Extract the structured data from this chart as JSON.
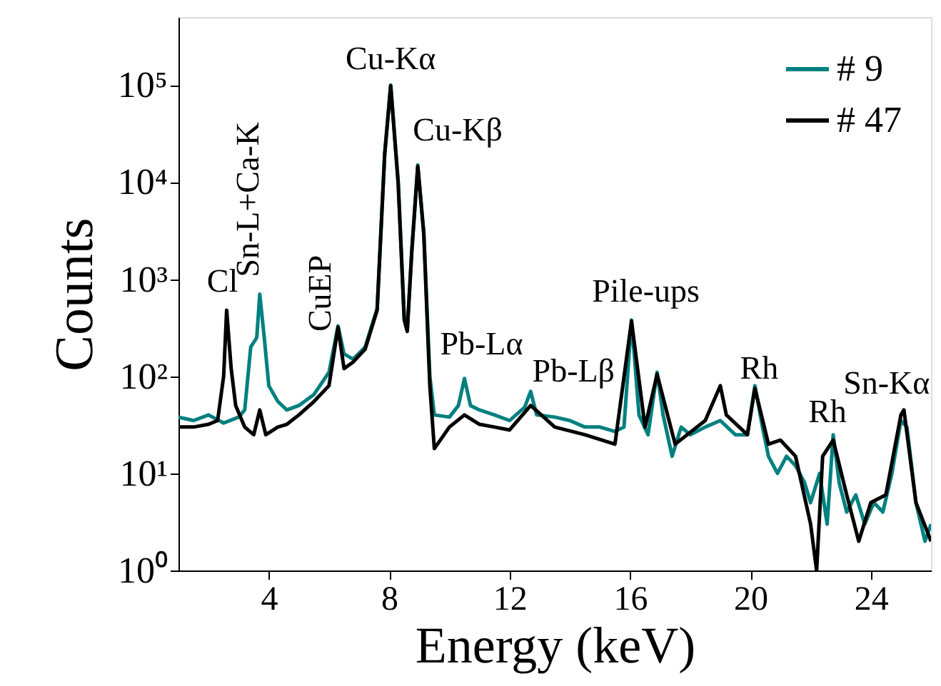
{
  "chart_data": {
    "type": "line",
    "xlabel": "Energy (keV)",
    "ylabel": "Counts",
    "log": "y",
    "grid": false,
    "legend": "top right",
    "line_style": "solid",
    "marker": "none",
    "xlim": [
      1,
      26
    ],
    "xticks": [
      4,
      8,
      12,
      16,
      20,
      24
    ],
    "ylim": [
      1,
      500000
    ],
    "yticks": [
      {
        "value": 1,
        "label": "10⁰"
      },
      {
        "value": 10,
        "label": "10¹"
      },
      {
        "value": 100,
        "label": "10²"
      },
      {
        "value": 1000,
        "label": "10³"
      },
      {
        "value": 10000,
        "label": "10⁴"
      },
      {
        "value": 100000,
        "label": "10⁵"
      }
    ],
    "series": [
      {
        "name": "# 9",
        "color": "#008080",
        "x": [
          1.0,
          1.5,
          2.0,
          2.5,
          3.0,
          3.2,
          3.4,
          3.6,
          3.7,
          3.85,
          4.0,
          4.3,
          4.6,
          5.0,
          5.5,
          6.0,
          6.3,
          6.5,
          6.8,
          7.2,
          7.6,
          7.85,
          8.05,
          8.3,
          8.5,
          8.6,
          8.75,
          8.95,
          9.15,
          9.35,
          9.5,
          10.0,
          10.3,
          10.5,
          10.7,
          11.0,
          11.5,
          12.0,
          12.5,
          12.7,
          12.9,
          13.5,
          14.0,
          14.5,
          15.0,
          15.5,
          15.8,
          16.05,
          16.3,
          16.6,
          16.9,
          17.1,
          17.4,
          17.7,
          18.0,
          18.5,
          19.0,
          19.5,
          19.9,
          20.15,
          20.4,
          20.6,
          20.9,
          21.2,
          21.5,
          21.8,
          22.0,
          22.3,
          22.55,
          22.75,
          22.95,
          23.2,
          23.5,
          23.8,
          24.1,
          24.4,
          24.7,
          25.0,
          25.2,
          25.5,
          25.8,
          26.0
        ],
        "values": [
          38,
          35,
          40,
          33,
          38,
          45,
          200,
          250,
          700,
          250,
          80,
          55,
          45,
          50,
          65,
          110,
          330,
          170,
          150,
          200,
          500,
          20000,
          100000,
          10000,
          400,
          300,
          2000,
          15000,
          3000,
          100,
          40,
          38,
          50,
          95,
          50,
          45,
          40,
          35,
          48,
          70,
          40,
          38,
          35,
          30,
          30,
          27,
          30,
          380,
          40,
          25,
          110,
          40,
          15,
          30,
          25,
          30,
          35,
          25,
          25,
          80,
          30,
          15,
          10,
          15,
          12,
          8,
          5,
          10,
          3,
          25,
          8,
          4,
          6,
          3,
          5,
          4,
          10,
          35,
          30,
          5,
          2,
          3
        ]
      },
      {
        "name": "# 47",
        "color": "#000000",
        "x": [
          1.0,
          1.5,
          2.0,
          2.3,
          2.5,
          2.6,
          2.75,
          2.9,
          3.2,
          3.5,
          3.7,
          3.9,
          4.3,
          4.6,
          5.0,
          5.5,
          6.0,
          6.3,
          6.5,
          6.8,
          7.2,
          7.6,
          7.85,
          8.05,
          8.3,
          8.5,
          8.6,
          8.75,
          8.95,
          9.15,
          9.35,
          9.5,
          10.0,
          10.5,
          11.0,
          11.5,
          12.0,
          12.7,
          13.5,
          14.5,
          15.5,
          16.05,
          16.5,
          16.9,
          17.5,
          18.5,
          19.0,
          19.2,
          19.9,
          20.15,
          20.6,
          21.0,
          21.5,
          22.0,
          22.2,
          22.4,
          22.75,
          23.2,
          23.6,
          24.0,
          24.5,
          25.0,
          25.1,
          25.5,
          26.0
        ],
        "values": [
          30,
          30,
          32,
          35,
          100,
          480,
          120,
          50,
          30,
          25,
          45,
          25,
          30,
          32,
          40,
          55,
          80,
          320,
          120,
          140,
          190,
          480,
          19000,
          98000,
          9500,
          380,
          290,
          1900,
          14500,
          2900,
          80,
          18,
          30,
          40,
          32,
          30,
          28,
          50,
          30,
          25,
          20,
          370,
          30,
          105,
          20,
          35,
          80,
          40,
          25,
          75,
          20,
          22,
          15,
          3,
          1,
          15,
          22,
          6,
          2,
          5,
          6,
          40,
          45,
          5,
          2
        ]
      }
    ],
    "annotations": [
      {
        "text": "Cl",
        "x": 2.6,
        "y": 480
      },
      {
        "text": "Sn-L+Ca-K",
        "x": 3.7,
        "y": 700
      },
      {
        "text": "CuEP",
        "x": 6.3,
        "y": 330
      },
      {
        "text": "Cu-Kα",
        "x": 8.05,
        "y": 100000
      },
      {
        "text": "Cu-Kβ",
        "x": 8.95,
        "y": 15000
      },
      {
        "text": "Pb-Lα",
        "x": 10.5,
        "y": 95
      },
      {
        "text": "Pb-Lβ",
        "x": 12.7,
        "y": 70
      },
      {
        "text": "Pile-ups",
        "x": 16.05,
        "y": 380
      },
      {
        "text": "Rh",
        "x": 20.15,
        "y": 80
      },
      {
        "text": "Rh",
        "x": 22.75,
        "y": 25
      },
      {
        "text": "Sn-Kα",
        "x": 25.0,
        "y": 35
      }
    ]
  }
}
